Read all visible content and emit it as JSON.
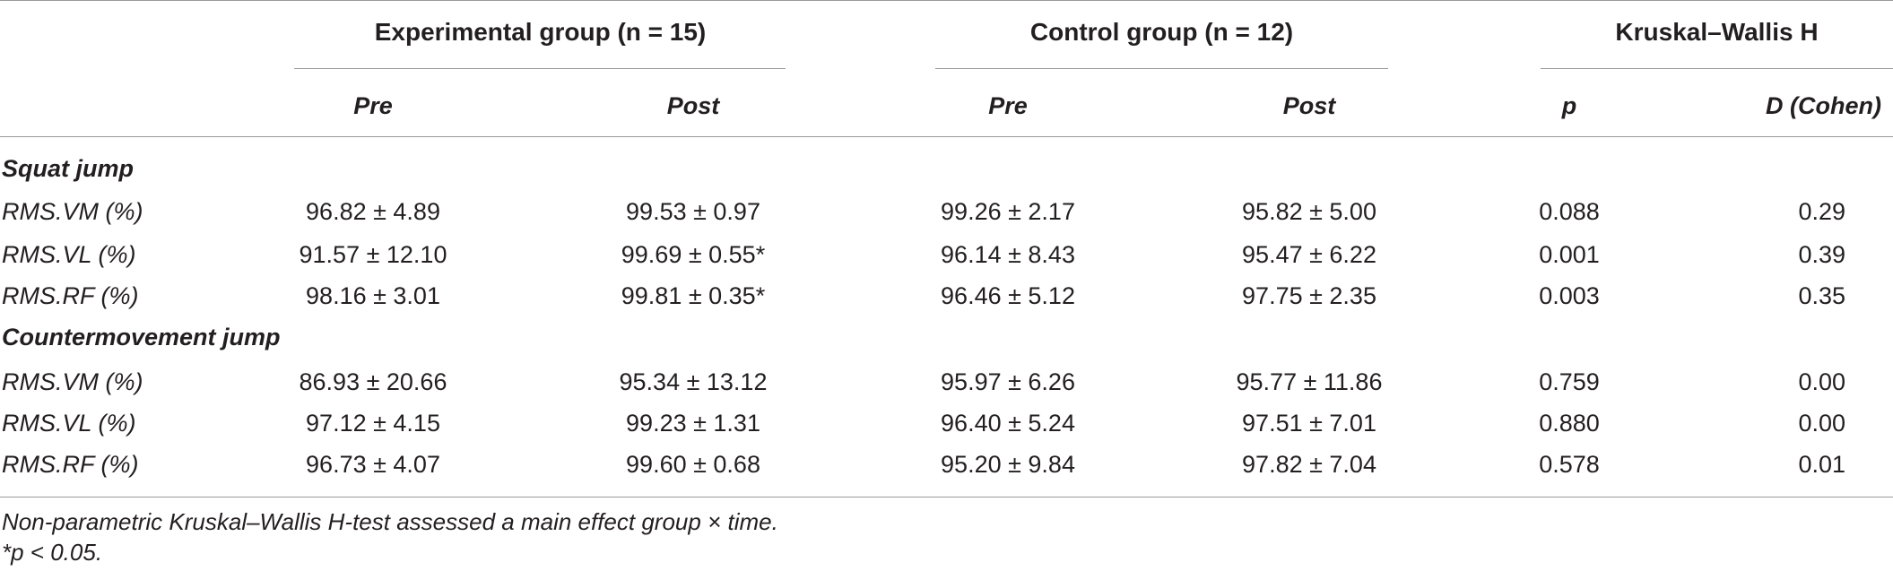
{
  "header": {
    "group1": "Experimental group (n = 15)",
    "group2": "Control group (n = 12)",
    "group3": "Kruskal–Wallis H",
    "pre1": "Pre",
    "post1": "Post",
    "pre2": "Pre",
    "post2": "Post",
    "p": "p",
    "d": "D (Cohen)"
  },
  "sections": [
    {
      "title": "Squat jump",
      "rows": [
        {
          "label": "RMS.VM (%)",
          "exp_pre": "96.82 ± 4.89",
          "exp_post": "99.53 ± 0.97",
          "ctl_pre": "99.26 ± 2.17",
          "ctl_post": "95.82 ± 5.00",
          "p": "0.088",
          "d": "0.29"
        },
        {
          "label": "RMS.VL (%)",
          "exp_pre": "91.57 ± 12.10",
          "exp_post": "99.69 ± 0.55*",
          "ctl_pre": "96.14 ± 8.43",
          "ctl_post": "95.47 ± 6.22",
          "p": "0.001",
          "d": "0.39"
        },
        {
          "label": "RMS.RF (%)",
          "exp_pre": "98.16 ± 3.01",
          "exp_post": "99.81 ± 0.35*",
          "ctl_pre": "96.46 ± 5.12",
          "ctl_post": "97.75 ± 2.35",
          "p": "0.003",
          "d": "0.35"
        }
      ]
    },
    {
      "title": "Countermovement jump",
      "rows": [
        {
          "label": "RMS.VM (%)",
          "exp_pre": "86.93 ± 20.66",
          "exp_post": "95.34 ± 13.12",
          "ctl_pre": "95.97 ± 6.26",
          "ctl_post": "95.77 ± 11.86",
          "p": "0.759",
          "d": "0.00"
        },
        {
          "label": "RMS.VL (%)",
          "exp_pre": "97.12 ± 4.15",
          "exp_post": "99.23 ± 1.31",
          "ctl_pre": "96.40 ± 5.24",
          "ctl_post": "97.51 ± 7.01",
          "p": "0.880",
          "d": "0.00"
        },
        {
          "label": "RMS.RF (%)",
          "exp_pre": "96.73 ± 4.07",
          "exp_post": "99.60 ± 0.68",
          "ctl_pre": "95.20 ± 9.84",
          "ctl_post": "97.82 ± 7.04",
          "p": "0.578",
          "d": "0.01"
        }
      ]
    }
  ],
  "footnotes": [
    "Non-parametric Kruskal–Wallis H-test assessed a main effect group × time.",
    "*p < 0.05."
  ]
}
